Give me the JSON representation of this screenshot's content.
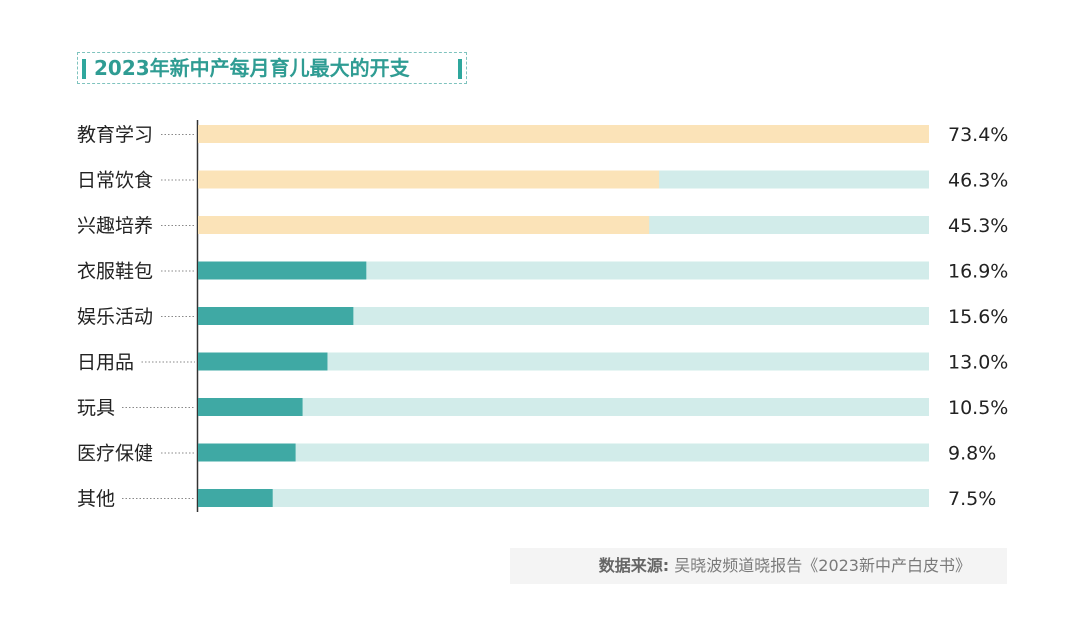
{
  "chart_data": {
    "type": "bar",
    "orientation": "horizontal",
    "title": "2023年新中产每月育儿最大的开支",
    "categories": [
      "教育学习",
      "日常饮食",
      "兴趣培养",
      "衣服鞋包",
      "娱乐活动",
      "日用品",
      "玩具",
      "医疗保健",
      "其他"
    ],
    "values": [
      73.4,
      46.3,
      45.3,
      16.9,
      15.6,
      13.0,
      10.5,
      9.8,
      7.5
    ],
    "value_labels": [
      "73.4%",
      "46.3%",
      "45.3%",
      "16.9%",
      "15.6%",
      "13.0%",
      "10.5%",
      "9.8%",
      "7.5%"
    ],
    "xlim": [
      0,
      73.4
    ],
    "grid": false,
    "colors": {
      "highlight": "#fbe3b8",
      "normal": "#3fa9a4",
      "track": "#d2ecea",
      "axis": "#333333",
      "text": "#222222"
    },
    "highlight_count": 3
  },
  "source": {
    "label": "数据来源:",
    "text": "吴晓波频道晓报告《2023新中产白皮书》"
  }
}
